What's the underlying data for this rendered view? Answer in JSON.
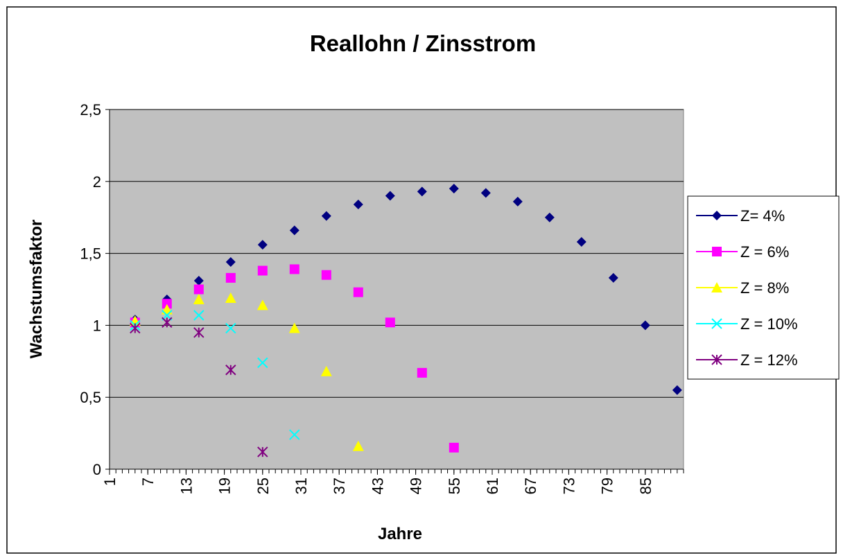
{
  "chart_data": {
    "type": "scatter",
    "title": "Reallohn / Zinsstrom",
    "x_label": "Jahre",
    "y_label": "Wachstumsfaktor",
    "xlim": [
      1,
      91
    ],
    "xticks": [
      1,
      7,
      13,
      19,
      25,
      31,
      37,
      43,
      49,
      55,
      61,
      67,
      73,
      79,
      85
    ],
    "ylim": [
      0,
      2.5
    ],
    "yticks": [
      0,
      {
        "value": 0.5,
        "label": "0,5"
      },
      1,
      {
        "value": 1.5,
        "label": "1,5"
      },
      2,
      {
        "value": 2.5,
        "label": "2,5"
      }
    ],
    "grid": true,
    "legend": "right",
    "series": [
      {
        "name": "Z= 4%",
        "color": "#000080",
        "marker": "diamond",
        "x": [
          5,
          10,
          15,
          20,
          25,
          30,
          35,
          40,
          45,
          50,
          55,
          60,
          65,
          70,
          75,
          80,
          85,
          90
        ],
        "values": [
          1.04,
          1.18,
          1.31,
          1.44,
          1.56,
          1.66,
          1.76,
          1.84,
          1.9,
          1.93,
          1.95,
          1.92,
          1.86,
          1.75,
          1.58,
          1.33,
          1.0,
          0.55
        ]
      },
      {
        "name": "Z = 6%",
        "color": "#ff00ff",
        "marker": "square",
        "x": [
          5,
          10,
          15,
          20,
          25,
          30,
          35,
          40,
          45,
          50,
          55
        ],
        "values": [
          1.02,
          1.15,
          1.25,
          1.33,
          1.38,
          1.39,
          1.35,
          1.23,
          1.02,
          0.67,
          0.15
        ]
      },
      {
        "name": "Z = 8%",
        "color": "#ffff00",
        "marker": "triangle",
        "x": [
          5,
          10,
          15,
          20,
          25,
          30,
          35,
          40
        ],
        "values": [
          1.03,
          1.11,
          1.18,
          1.19,
          1.14,
          0.98,
          0.68,
          0.16
        ]
      },
      {
        "name": "Z = 10%",
        "color": "#00ffff",
        "marker": "x",
        "x": [
          5,
          10,
          15,
          20,
          25,
          30
        ],
        "values": [
          1.0,
          1.07,
          1.07,
          0.98,
          0.74,
          0.24
        ]
      },
      {
        "name": "Z = 12%",
        "color": "#800080",
        "marker": "star",
        "x": [
          5,
          10,
          15,
          20,
          25
        ],
        "values": [
          0.98,
          1.02,
          0.95,
          0.69,
          0.12
        ]
      }
    ]
  }
}
